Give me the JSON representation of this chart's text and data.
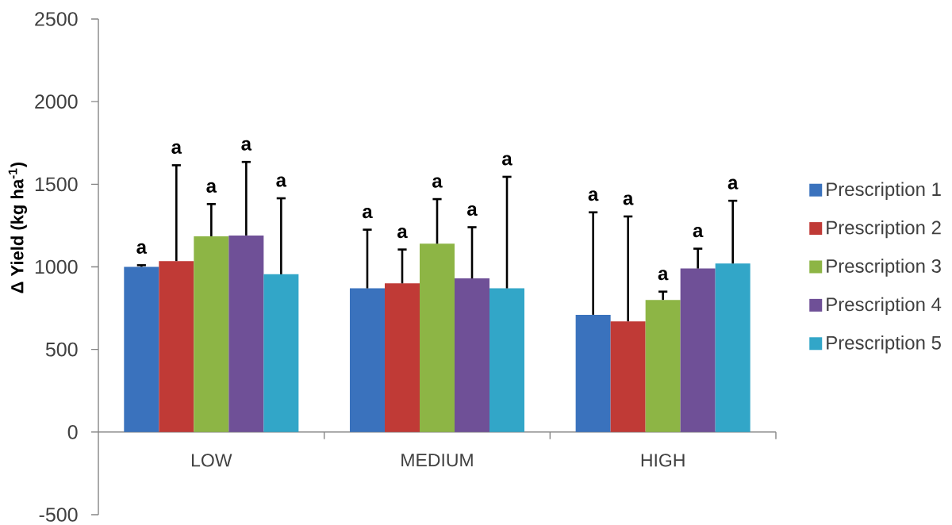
{
  "chart_data": {
    "type": "bar",
    "ylabel": "Δ Yield (kg ha$^{-1}$)",
    "categories": [
      "LOW",
      "MEDIUM",
      "HIGH"
    ],
    "ylim": [
      -500,
      2500
    ],
    "yticks": [
      -500,
      0,
      500,
      1000,
      1500,
      2000,
      2500
    ],
    "grid": false,
    "legend": "right",
    "series": [
      {
        "name": "Prescription 1",
        "color": "#3a72bd",
        "values": [
          1000,
          870,
          710
        ],
        "errors": [
          [
            1000,
            1010
          ],
          [
            870,
            1225
          ],
          [
            710,
            1330
          ]
        ]
      },
      {
        "name": "Prescription 2",
        "color": "#c03a36",
        "values": [
          1035,
          900,
          670
        ],
        "errors": [
          [
            1035,
            1615
          ],
          [
            900,
            1105
          ],
          [
            670,
            1305
          ]
        ]
      },
      {
        "name": "Prescription 3",
        "color": "#8db545",
        "values": [
          1185,
          1140,
          800
        ],
        "errors": [
          [
            1185,
            1380
          ],
          [
            1140,
            1410
          ],
          [
            800,
            850
          ]
        ]
      },
      {
        "name": "Prescription 4",
        "color": "#6f5097",
        "values": [
          1190,
          930,
          990
        ],
        "errors": [
          [
            1190,
            1635
          ],
          [
            930,
            1240
          ],
          [
            990,
            1110
          ]
        ]
      },
      {
        "name": "Prescription 5",
        "color": "#32a6c8",
        "values": [
          955,
          870,
          1020
        ],
        "errors": [
          [
            955,
            1415
          ],
          [
            870,
            1545
          ],
          [
            1020,
            1400
          ]
        ]
      }
    ],
    "annotations": [
      "a",
      "a",
      "a",
      "a",
      "a",
      "a",
      "a",
      "a",
      "a",
      "a",
      "a",
      "a",
      "a",
      "a",
      "a"
    ]
  }
}
